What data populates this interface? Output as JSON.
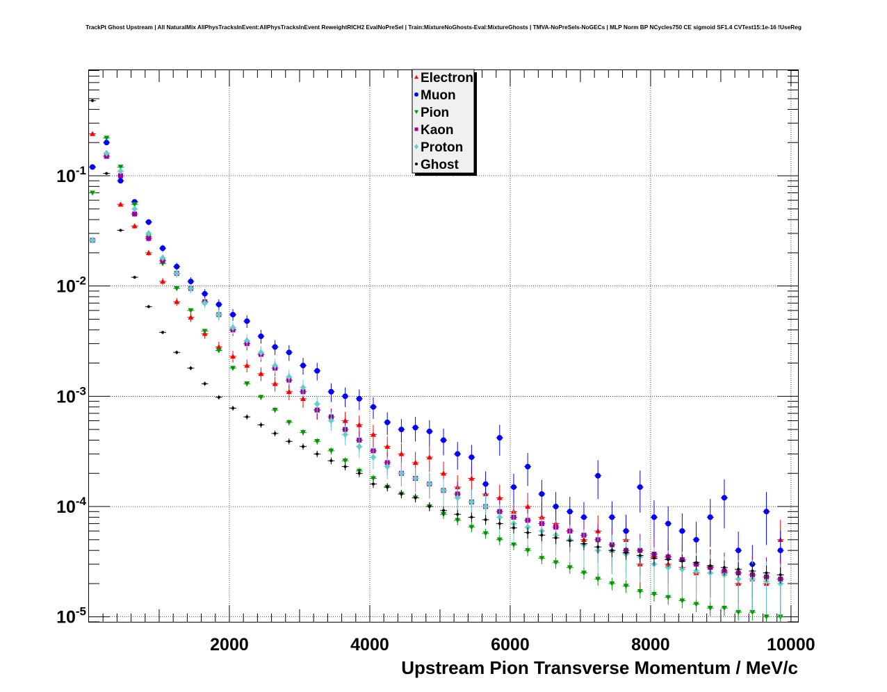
{
  "title": "TrackPt Ghost Upstream | All NaturalMix AllPhysTracksInEvent:AllPhysTracksInEvent ReweightRICH2 EvalNoPreSel | Train:MixtureNoGhosts-Eval:MixtureGhosts | TMVA-NoPreSels-NoGECs | MLP Norm BP NCycles750 CE sigmoid SF1.4 CVTest15:1e-16 !UseReg",
  "chart_data": {
    "type": "scatter",
    "title": "TrackPt Ghost Upstream | All NaturalMix AllPhysTracksInEvent:AllPhysTracksInEvent ReweightRICH2 EvalNoPreSel | Train:MixtureNoGhosts-Eval:MixtureGhosts | TMVA-NoPreSels-NoGECs | MLP Norm BP NCycles750 CE sigmoid SF1.4 CVTest15:1e-16 !UseReg",
    "xlabel": "Upstream Pion Transverse Momentum / MeV/c",
    "ylabel": "",
    "xlim": [
      0,
      10100
    ],
    "ylim": [
      9e-06,
      0.92
    ],
    "yscale": "log",
    "grid": true,
    "legend_position": "top-center",
    "xticks": [
      {
        "value": 2000,
        "label": "2000"
      },
      {
        "value": 4000,
        "label": "4000"
      },
      {
        "value": 6000,
        "label": "6000"
      },
      {
        "value": 8000,
        "label": "8000"
      },
      {
        "value": 10000,
        "label": "10000"
      }
    ],
    "yticks": [
      {
        "value": 0.1,
        "base": "10",
        "exp": "-1"
      },
      {
        "value": 0.01,
        "base": "10",
        "exp": "-2"
      },
      {
        "value": 0.001,
        "base": "10",
        "exp": "-3"
      },
      {
        "value": 0.0001,
        "base": "10",
        "exp": "-4"
      },
      {
        "value": 1e-05,
        "base": "10",
        "exp": "-5"
      }
    ],
    "x": [
      50,
      250,
      450,
      650,
      850,
      1050,
      1250,
      1450,
      1650,
      1850,
      2050,
      2250,
      2450,
      2650,
      2850,
      3050,
      3250,
      3450,
      3650,
      3850,
      4050,
      4250,
      4450,
      4650,
      4850,
      5050,
      5250,
      5450,
      5650,
      5850,
      6050,
      6250,
      6450,
      6650,
      6850,
      7050,
      7250,
      7450,
      7650,
      7850,
      8050,
      8250,
      8450,
      8650,
      8850,
      9050,
      9250,
      9450,
      9650,
      9850
    ],
    "series": [
      {
        "name": "Electron",
        "color": "#ff0000",
        "marker": "triangle-up",
        "values": [
          0.24,
          0.15,
          0.055,
          0.035,
          0.02,
          0.011,
          0.0072,
          0.0052,
          0.0037,
          0.0028,
          0.0023,
          0.0019,
          0.0016,
          0.0013,
          0.0011,
          0.00095,
          0.00075,
          0.00065,
          0.0006,
          0.00055,
          0.00045,
          0.00035,
          0.0003,
          0.00025,
          0.00028,
          0.0002,
          0.00015,
          0.00018,
          0.00013,
          0.00012,
          9e-05,
          0.0001,
          8e-05,
          7e-05,
          6e-05,
          5e-05,
          6e-05,
          4e-05,
          5e-05,
          3e-05,
          3.5e-05,
          3e-05,
          2.8e-05,
          2.5e-05,
          2.8e-05,
          2.5e-05,
          2e-05,
          2.2e-05,
          2e-05,
          5e-05
        ]
      },
      {
        "name": "Muon",
        "color": "#0000ff",
        "marker": "circle",
        "values": [
          0.12,
          0.2,
          0.09,
          0.058,
          0.038,
          0.022,
          0.015,
          0.011,
          0.0085,
          0.0068,
          0.0055,
          0.0048,
          0.0035,
          0.0028,
          0.0025,
          0.0019,
          0.0017,
          0.0011,
          0.001,
          0.00095,
          0.0008,
          0.00058,
          0.0005,
          0.00052,
          0.00048,
          0.0004,
          0.0003,
          0.00028,
          0.00016,
          0.00042,
          0.00015,
          0.00023,
          0.00013,
          0.0001,
          9e-05,
          8e-05,
          0.00019,
          8e-05,
          6e-05,
          0.00015,
          8e-05,
          7e-05,
          6e-05,
          5e-05,
          8e-05,
          0.00012,
          4e-05,
          3e-05,
          9e-05,
          4e-05
        ]
      },
      {
        "name": "Pion",
        "color": "#009900",
        "marker": "triangle-down",
        "values": [
          0.07,
          0.22,
          0.12,
          0.055,
          0.028,
          0.016,
          0.0095,
          0.006,
          0.0039,
          0.0026,
          0.0018,
          0.0013,
          0.00098,
          0.00075,
          0.00058,
          0.00047,
          0.00039,
          0.00032,
          0.00026,
          0.00021,
          0.00018,
          0.00015,
          0.00013,
          0.00012,
          0.0001,
          8.5e-05,
          7.5e-05,
          6.5e-05,
          5.7e-05,
          5e-05,
          4.5e-05,
          4e-05,
          3.4e-05,
          3.1e-05,
          2.8e-05,
          2.5e-05,
          2.2e-05,
          2e-05,
          1.9e-05,
          1.7e-05,
          1.6e-05,
          1.5e-05,
          1.4e-05,
          1.3e-05,
          1.2e-05,
          1.2e-05,
          1.1e-05,
          1.1e-05,
          1e-05,
          1e-05
        ]
      },
      {
        "name": "Kaon",
        "color": "#990099",
        "marker": "square",
        "values": [
          0.026,
          0.15,
          0.1,
          0.045,
          0.027,
          0.017,
          0.013,
          0.0095,
          0.0072,
          0.0055,
          0.004,
          0.003,
          0.0024,
          0.0018,
          0.0014,
          0.0011,
          0.00075,
          0.00065,
          0.0005,
          0.0004,
          0.00032,
          0.00025,
          0.0002,
          0.00018,
          0.00016,
          0.00014,
          0.00013,
          0.00011,
          0.0001,
          9e-05,
          8e-05,
          7.5e-05,
          7e-05,
          6.5e-05,
          6e-05,
          5.5e-05,
          5e-05,
          4.5e-05,
          4e-05,
          4e-05,
          3.7e-05,
          3.5e-05,
          3.3e-05,
          3e-05,
          2.8e-05,
          2.6e-05,
          2.5e-05,
          2.4e-05,
          2.3e-05,
          2.2e-05
        ]
      },
      {
        "name": "Proton",
        "color": "#66cccc",
        "marker": "diamond",
        "values": [
          0.026,
          0.16,
          0.11,
          0.05,
          0.03,
          0.018,
          0.013,
          0.0095,
          0.007,
          0.0055,
          0.0042,
          0.0032,
          0.0025,
          0.0019,
          0.0015,
          0.0012,
          0.00085,
          0.0006,
          0.00045,
          0.00035,
          0.00028,
          0.00023,
          0.0002,
          0.00018,
          0.00016,
          0.00014,
          0.00012,
          0.00011,
          0.0001,
          8e-05,
          7e-05,
          6.5e-05,
          6e-05,
          5.5e-05,
          5e-05,
          4.5e-05,
          4e-05,
          4e-05,
          3.7e-05,
          3.5e-05,
          3e-05,
          2.8e-05,
          2.7e-05,
          2.6e-05,
          2.5e-05,
          2.4e-05,
          2.2e-05,
          2.2e-05,
          2.1e-05,
          2e-05
        ]
      },
      {
        "name": "Ghost",
        "color": "#000000",
        "marker": "dot",
        "values": [
          0.48,
          0.105,
          0.032,
          0.012,
          0.0065,
          0.0038,
          0.0025,
          0.0018,
          0.0013,
          0.00098,
          0.00078,
          0.00065,
          0.00055,
          0.00046,
          0.00039,
          0.00035,
          0.0003,
          0.00026,
          0.00023,
          0.0002,
          0.00016,
          0.00015,
          0.00013,
          0.00012,
          0.0001,
          9.2e-05,
          8.5e-05,
          8e-05,
          7.6e-05,
          7e-05,
          6.4e-05,
          5.8e-05,
          5.5e-05,
          5.2e-05,
          4.9e-05,
          4.6e-05,
          4.3e-05,
          4e-05,
          3.8e-05,
          3.6e-05,
          3.4e-05,
          3.3e-05,
          3.2e-05,
          3.1e-05,
          2.9e-05,
          2.8e-05,
          2.7e-05,
          2.6e-05,
          2.5e-05,
          2.4e-05
        ]
      }
    ]
  }
}
